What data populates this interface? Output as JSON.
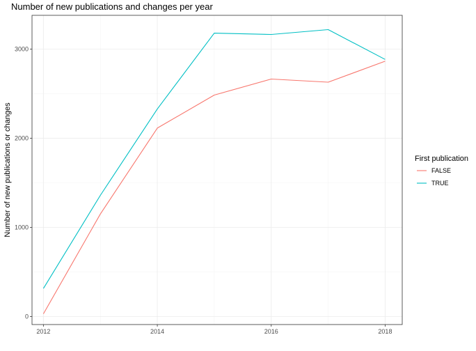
{
  "chart_data": {
    "type": "line",
    "title": "Number of new publications and changes per year",
    "xlabel": "",
    "ylabel": "Number of new publications or changes",
    "x": [
      2012,
      2013,
      2014,
      2015,
      2016,
      2017,
      2018
    ],
    "xticks": [
      2012,
      2014,
      2016,
      2018
    ],
    "yticks": [
      0,
      1000,
      2000,
      3000
    ],
    "xlim": [
      2011.8,
      2018.3
    ],
    "ylim": [
      -90,
      3380
    ],
    "grid": true,
    "legend": {
      "title": "First publication",
      "placement": "right"
    },
    "series": [
      {
        "name": "FALSE",
        "color": "#f8766d",
        "values": [
          30,
          1150,
          2115,
          2485,
          2665,
          2630,
          2865
        ]
      },
      {
        "name": "TRUE",
        "color": "#00bfc4",
        "values": [
          315,
          1360,
          2330,
          3180,
          3165,
          3220,
          2885
        ]
      }
    ]
  }
}
